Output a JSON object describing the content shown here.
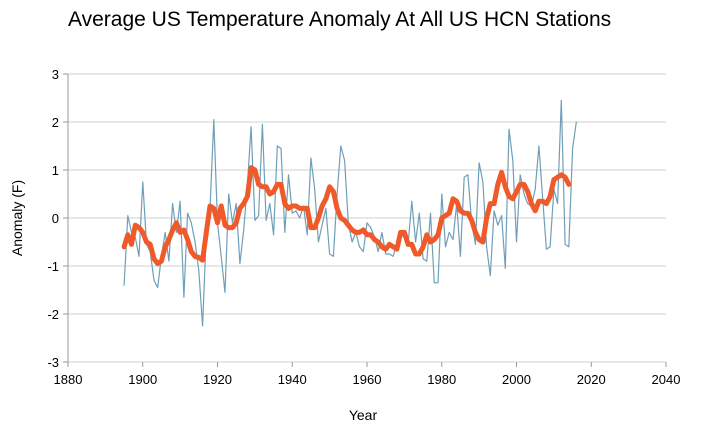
{
  "chart_data": {
    "type": "line",
    "title": "Average US Temperature Anomaly At All US HCN Stations",
    "xlabel": "Year",
    "ylabel": "Anomaly (F)",
    "xlim": [
      1880,
      2040
    ],
    "ylim": [
      -3,
      3
    ],
    "xticks": [
      1880,
      1900,
      1920,
      1940,
      1960,
      1980,
      2000,
      2020,
      2040
    ],
    "yticks": [
      -3,
      -2,
      -1,
      0,
      1,
      2,
      3
    ],
    "grid": "horizontal",
    "legend": "none",
    "colors": {
      "annual": "#6f9fb8",
      "smoothed": "#f05a2a",
      "grid": "#d0d0d0"
    },
    "series": [
      {
        "style": "thin",
        "x": [
          1895,
          1896,
          1897,
          1898,
          1899,
          1900,
          1901,
          1902,
          1903,
          1904,
          1905,
          1906,
          1907,
          1908,
          1909,
          1910,
          1911,
          1912,
          1913,
          1914,
          1915,
          1916,
          1917,
          1918,
          1919,
          1920,
          1921,
          1922,
          1923,
          1924,
          1925,
          1926,
          1927,
          1928,
          1929,
          1930,
          1931,
          1932,
          1933,
          1934,
          1935,
          1936,
          1937,
          1938,
          1939,
          1940,
          1941,
          1942,
          1943,
          1944,
          1945,
          1946,
          1947,
          1948,
          1949,
          1950,
          1951,
          1952,
          1953,
          1954,
          1955,
          1956,
          1957,
          1958,
          1959,
          1960,
          1961,
          1962,
          1963,
          1964,
          1965,
          1966,
          1967,
          1968,
          1969,
          1970,
          1971,
          1972,
          1973,
          1974,
          1975,
          1976,
          1977,
          1978,
          1979,
          1980,
          1981,
          1982,
          1983,
          1984,
          1985,
          1986,
          1987,
          1988,
          1989,
          1990,
          1991,
          1992,
          1993,
          1994,
          1995,
          1996,
          1997,
          1998,
          1999,
          2000,
          2001,
          2002,
          2003,
          2004,
          2005,
          2006,
          2007,
          2008,
          2009,
          2010,
          2011,
          2012,
          2013,
          2014,
          2015,
          2016
        ],
        "y": [
          -1.4,
          0.05,
          -0.3,
          -0.4,
          -0.8,
          0.75,
          -0.55,
          -0.7,
          -1.3,
          -1.45,
          -0.8,
          -0.3,
          -0.9,
          0.3,
          -0.3,
          0.35,
          -1.65,
          0.1,
          -0.1,
          -0.5,
          -1.1,
          -2.25,
          -0.3,
          0.2,
          2.05,
          -0.1,
          -0.8,
          -1.55,
          0.5,
          -0.1,
          0.3,
          -0.95,
          -0.25,
          0.7,
          1.9,
          -0.05,
          0.05,
          1.95,
          -0.05,
          0.3,
          -0.35,
          1.5,
          1.45,
          -0.3,
          0.9,
          0.1,
          0.15,
          0.0,
          0.25,
          -0.35,
          1.25,
          0.6,
          -0.5,
          -0.15,
          0.2,
          -0.75,
          -0.8,
          0.5,
          1.5,
          1.2,
          -0.1,
          -0.5,
          -0.3,
          -0.6,
          -0.7,
          -0.1,
          -0.2,
          -0.4,
          -0.7,
          -0.3,
          -0.75,
          -0.75,
          -0.8,
          -0.5,
          -0.35,
          -0.4,
          -0.55,
          0.35,
          -0.5,
          0.1,
          -0.85,
          -0.9,
          0.1,
          -1.35,
          -1.35,
          0.5,
          -0.6,
          -0.3,
          -0.45,
          0.3,
          -0.8,
          0.85,
          0.9,
          -0.1,
          -0.55,
          1.15,
          0.75,
          -0.6,
          -1.2,
          0.15,
          -0.15,
          0.05,
          -1.05,
          1.85,
          1.2,
          -0.5,
          0.9,
          0.5,
          0.3,
          0.25,
          0.6,
          1.5,
          0.4,
          -0.65,
          -0.6,
          0.6,
          0.3,
          2.45,
          -0.55,
          -0.6,
          1.45,
          2.0
        ]
      },
      {
        "style": "thick",
        "x": [
          1895,
          1896,
          1897,
          1898,
          1899,
          1900,
          1901,
          1902,
          1903,
          1904,
          1905,
          1906,
          1907,
          1908,
          1909,
          1910,
          1911,
          1912,
          1913,
          1914,
          1915,
          1916,
          1917,
          1918,
          1919,
          1920,
          1921,
          1922,
          1923,
          1924,
          1925,
          1926,
          1927,
          1928,
          1929,
          1930,
          1931,
          1932,
          1933,
          1934,
          1935,
          1936,
          1937,
          1938,
          1939,
          1940,
          1941,
          1942,
          1943,
          1944,
          1945,
          1946,
          1947,
          1948,
          1949,
          1950,
          1951,
          1952,
          1953,
          1954,
          1955,
          1956,
          1957,
          1958,
          1959,
          1960,
          1961,
          1962,
          1963,
          1964,
          1965,
          1966,
          1967,
          1968,
          1969,
          1970,
          1971,
          1972,
          1973,
          1974,
          1975,
          1976,
          1977,
          1978,
          1979,
          1980,
          1981,
          1982,
          1983,
          1984,
          1985,
          1986,
          1987,
          1988,
          1989,
          1990,
          1991,
          1992,
          1993,
          1994,
          1995,
          1996,
          1997,
          1998,
          1999,
          2000,
          2001,
          2002,
          2003,
          2004,
          2005,
          2006,
          2007,
          2008,
          2009,
          2010,
          2011,
          2012,
          2013,
          2014
        ],
        "y": [
          -0.6,
          -0.35,
          -0.55,
          -0.15,
          -0.2,
          -0.3,
          -0.5,
          -0.55,
          -0.85,
          -0.95,
          -0.9,
          -0.6,
          -0.45,
          -0.25,
          -0.1,
          -0.3,
          -0.25,
          -0.45,
          -0.7,
          -0.8,
          -0.82,
          -0.88,
          -0.3,
          0.25,
          0.2,
          -0.1,
          0.25,
          -0.15,
          -0.2,
          -0.2,
          -0.1,
          0.2,
          0.3,
          0.45,
          1.05,
          1.0,
          0.7,
          0.65,
          0.65,
          0.5,
          0.55,
          0.7,
          0.7,
          0.3,
          0.2,
          0.25,
          0.25,
          0.2,
          0.2,
          0.2,
          -0.2,
          -0.2,
          0.0,
          0.25,
          0.4,
          0.65,
          0.55,
          0.2,
          0.0,
          -0.05,
          -0.15,
          -0.25,
          -0.3,
          -0.3,
          -0.25,
          -0.35,
          -0.35,
          -0.45,
          -0.5,
          -0.6,
          -0.65,
          -0.55,
          -0.6,
          -0.65,
          -0.3,
          -0.3,
          -0.55,
          -0.55,
          -0.75,
          -0.75,
          -0.6,
          -0.35,
          -0.5,
          -0.45,
          -0.35,
          0.0,
          0.05,
          0.1,
          0.4,
          0.35,
          0.15,
          0.1,
          0.1,
          -0.05,
          -0.3,
          -0.45,
          -0.5,
          0.0,
          0.3,
          0.3,
          0.7,
          0.95,
          0.65,
          0.45,
          0.4,
          0.55,
          0.7,
          0.7,
          0.55,
          0.3,
          0.15,
          0.35,
          0.35,
          0.3,
          0.45,
          0.8,
          0.85,
          0.9,
          0.85,
          0.7
        ]
      }
    ]
  }
}
